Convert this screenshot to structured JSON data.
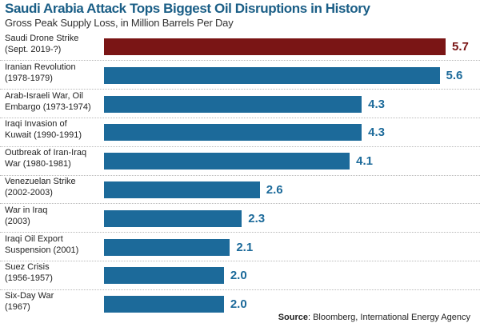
{
  "chart_data": {
    "type": "bar",
    "orientation": "horizontal",
    "title": "Saudi Arabia Attack Tops Biggest Oil Disruptions in History",
    "subtitle": "Gross Peak Supply Loss, in Million Barrels Per Day",
    "categories": [
      [
        "Saudi Drone Strike",
        "(Sept. 2019-?)"
      ],
      [
        "Iranian Revolution",
        "(1978-1979)"
      ],
      [
        "Arab-Israeli War, Oil",
        "Embargo (1973-1974)"
      ],
      [
        "Iraqi Invasion of",
        "Kuwait (1990-1991)"
      ],
      [
        "Outbreak of Iran-Iraq",
        "War (1980-1981)"
      ],
      [
        "Venezuelan Strike",
        "(2002-2003)"
      ],
      [
        "War in Iraq",
        "(2003)"
      ],
      [
        "Iraqi Oil Export",
        "Suspension (2001)"
      ],
      [
        "Suez Crisis",
        "(1956-1957)"
      ],
      [
        "Six-Day War",
        "(1967)"
      ]
    ],
    "values": [
      5.7,
      5.6,
      4.3,
      4.3,
      4.1,
      2.6,
      2.3,
      2.1,
      2.0,
      2.0
    ],
    "value_labels": [
      "5.7",
      "5.6",
      "4.3",
      "4.3",
      "4.1",
      "2.6",
      "2.3",
      "2.1",
      "2.0",
      "2.0"
    ],
    "highlight_index": 0,
    "colors": {
      "highlight": "#7a1515",
      "default": "#1c6a9a",
      "title": "#1a5e86"
    },
    "xlim": [
      0,
      5.7
    ],
    "xlabel": "",
    "ylabel": "",
    "grid": false,
    "legend": "none"
  },
  "source": {
    "label": "Source",
    "text": ": Bloomberg, International Energy Agency"
  }
}
